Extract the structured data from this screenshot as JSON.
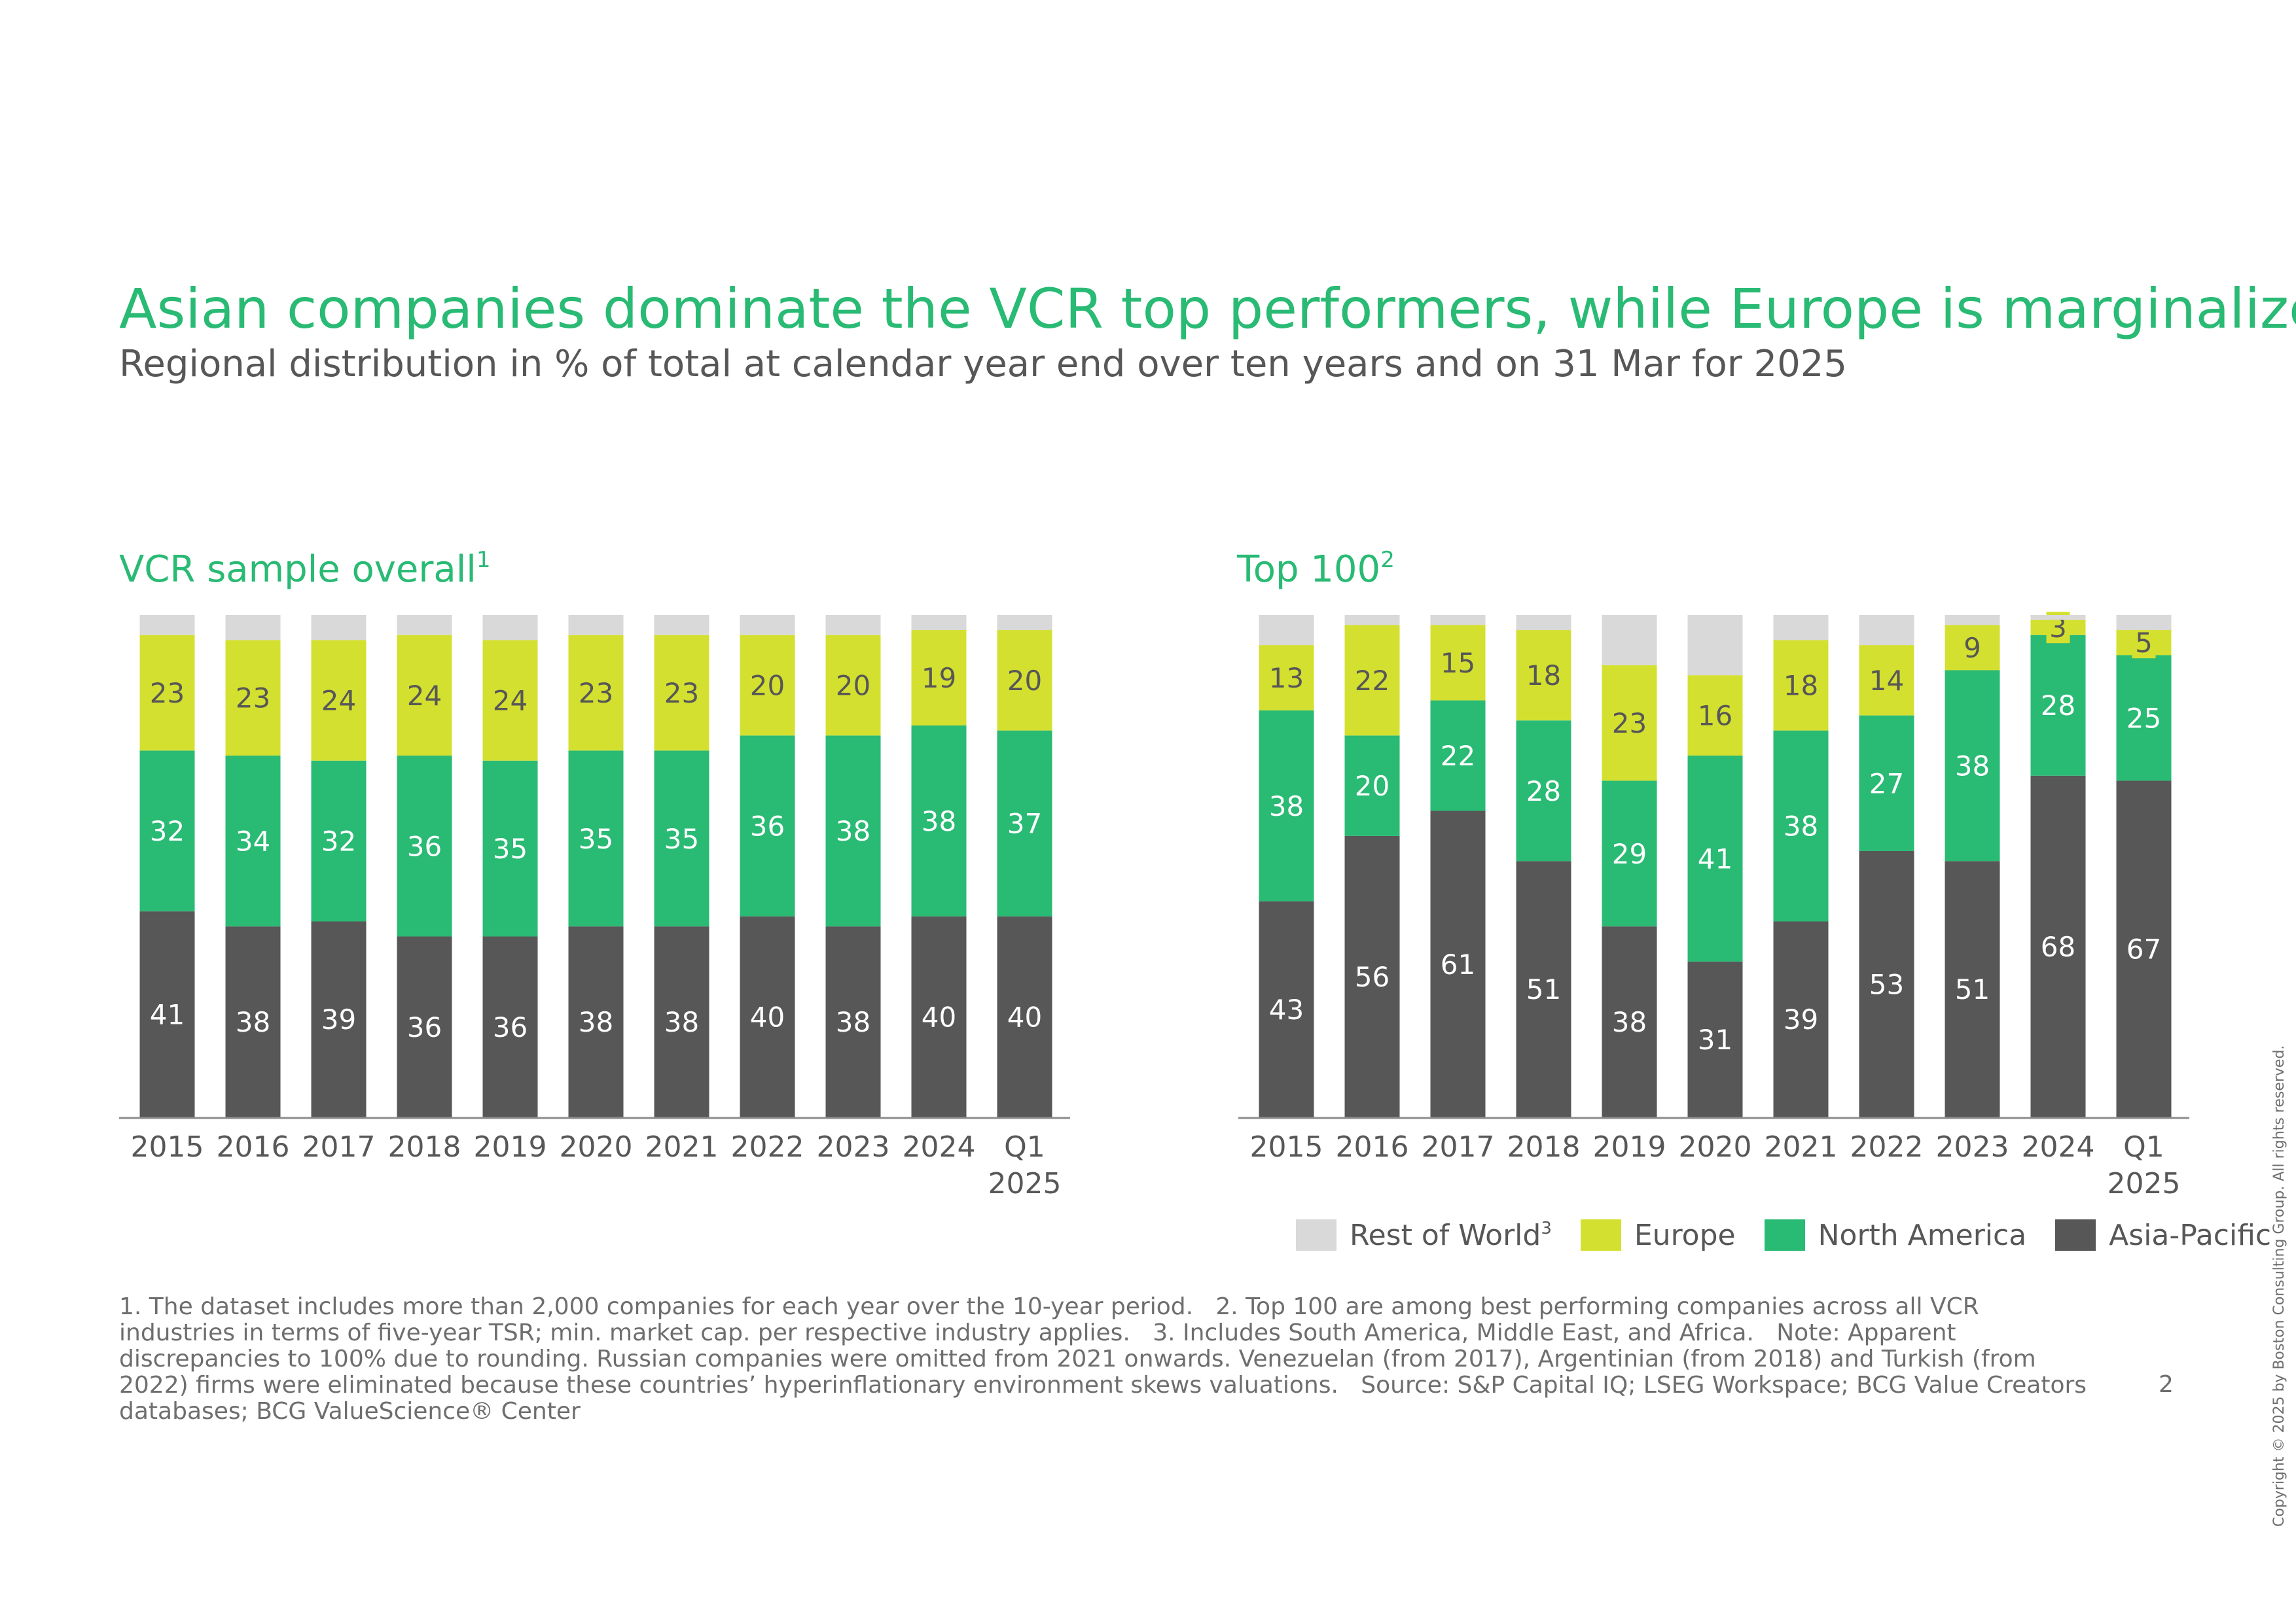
{
  "title": "Asian companies dominate the VCR top performers, while Europe is marginalized",
  "subtitle": "Regional distribution in % of total at calendar year end over ten years and on 31 Mar for 2025",
  "colors": {
    "rest_of_world": "#D9D9D9",
    "europe": "#D4E030",
    "north_america": "#29BA74",
    "asia_pacific": "#575757",
    "title_green": "#29BA74",
    "text_gray": "#575757"
  },
  "legend": {
    "rest_of_world": "Rest of World",
    "rest_of_world_sup": "3",
    "europe": "Europe",
    "north_america": "North America",
    "asia_pacific": "Asia-Pacific"
  },
  "chart_data": [
    {
      "type": "bar",
      "stacked": true,
      "title": "VCR sample overall",
      "title_sup": "1",
      "categories": [
        "2015",
        "2016",
        "2017",
        "2018",
        "2019",
        "2020",
        "2021",
        "2022",
        "2023",
        "2024",
        "Q1 2025"
      ],
      "ylim": [
        0,
        100
      ],
      "series": [
        {
          "name": "Asia-Pacific",
          "key": "asia_pacific",
          "values": [
            41,
            38,
            39,
            36,
            36,
            38,
            38,
            40,
            38,
            40,
            40
          ]
        },
        {
          "name": "North America",
          "key": "north_america",
          "values": [
            32,
            34,
            32,
            36,
            35,
            35,
            35,
            36,
            38,
            38,
            37
          ]
        },
        {
          "name": "Europe",
          "key": "europe",
          "values": [
            23,
            23,
            24,
            24,
            24,
            23,
            23,
            20,
            20,
            19,
            20
          ]
        },
        {
          "name": "Rest of World",
          "key": "rest_of_world",
          "values": [
            4,
            5,
            5,
            4,
            5,
            4,
            4,
            4,
            4,
            3,
            3
          ],
          "labeled": false
        }
      ]
    },
    {
      "type": "bar",
      "stacked": true,
      "title": "Top 100",
      "title_sup": "2",
      "categories": [
        "2015",
        "2016",
        "2017",
        "2018",
        "2019",
        "2020",
        "2021",
        "2022",
        "2023",
        "2024",
        "Q1 2025"
      ],
      "ylim": [
        0,
        100
      ],
      "series": [
        {
          "name": "Asia-Pacific",
          "key": "asia_pacific",
          "values": [
            43,
            56,
            61,
            51,
            38,
            31,
            39,
            53,
            51,
            68,
            67
          ]
        },
        {
          "name": "North America",
          "key": "north_america",
          "values": [
            38,
            20,
            22,
            28,
            29,
            41,
            38,
            27,
            38,
            28,
            25
          ]
        },
        {
          "name": "Europe",
          "key": "europe",
          "values": [
            13,
            22,
            15,
            18,
            23,
            16,
            18,
            14,
            9,
            3,
            5
          ]
        },
        {
          "name": "Rest of World",
          "key": "rest_of_world",
          "values": [
            6,
            2,
            2,
            3,
            10,
            12,
            5,
            6,
            2,
            1,
            3
          ],
          "labeled": false
        }
      ]
    }
  ],
  "footnote": {
    "n1": "1. The dataset includes more than 2,000 companies for each year over the 10-year period.",
    "n2": "2. Top 100 are among best performing companies across all VCR industries in terms of five-year TSR; min. market cap. per respective industry applies.",
    "n3": "3. Includes South America, Middle East, and Africa.",
    "note": "Note: Apparent discrepancies to 100% due to rounding. Russian companies were omitted from 2021 onwards. Venezuelan (from 2017), Argentinian (from 2018) and Turkish (from 2022) firms were eliminated because these countries’ hyperinflationary environment skews valuations.",
    "source": "Source: S&P Capital IQ; LSEG Workspace; BCG Value Creators databases; BCG ValueScience® Center"
  },
  "page_number": "2",
  "copyright": "Copyright © 2025 by Boston Consulting Group. All rights reserved."
}
